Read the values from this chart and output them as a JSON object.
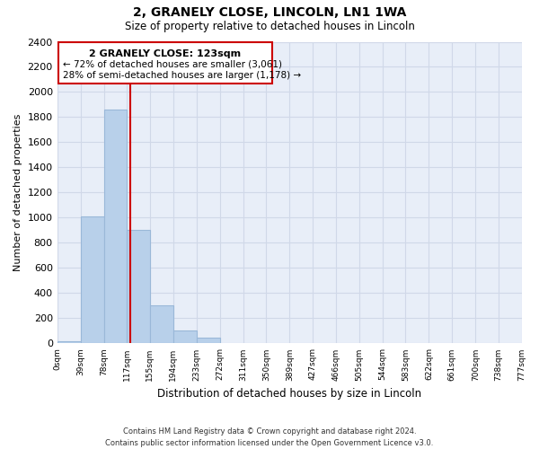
{
  "title": "2, GRANELY CLOSE, LINCOLN, LN1 1WA",
  "subtitle": "Size of property relative to detached houses in Lincoln",
  "xlabel": "Distribution of detached houses by size in Lincoln",
  "ylabel": "Number of detached properties",
  "bar_edges": [
    0,
    39,
    78,
    117,
    155,
    194,
    233,
    272,
    311,
    350,
    389,
    427,
    466,
    505,
    544,
    583,
    622,
    661,
    700,
    738,
    777
  ],
  "bar_heights": [
    20,
    1010,
    1860,
    900,
    300,
    100,
    45,
    0,
    0,
    0,
    0,
    0,
    0,
    0,
    0,
    0,
    0,
    0,
    0,
    0
  ],
  "bar_color": "#b8d0ea",
  "bar_edgecolor": "#9ab8d8",
  "ylim": [
    0,
    2400
  ],
  "yticks": [
    0,
    200,
    400,
    600,
    800,
    1000,
    1200,
    1400,
    1600,
    1800,
    2000,
    2200,
    2400
  ],
  "xtick_labels": [
    "0sqm",
    "39sqm",
    "78sqm",
    "117sqm",
    "155sqm",
    "194sqm",
    "233sqm",
    "272sqm",
    "311sqm",
    "350sqm",
    "389sqm",
    "427sqm",
    "466sqm",
    "505sqm",
    "544sqm",
    "583sqm",
    "622sqm",
    "661sqm",
    "700sqm",
    "738sqm",
    "777sqm"
  ],
  "property_line_x": 123,
  "property_line_color": "#cc0000",
  "annotation_title": "2 GRANELY CLOSE: 123sqm",
  "annotation_line1": "← 72% of detached houses are smaller (3,061)",
  "annotation_line2": "28% of semi-detached houses are larger (1,178) →",
  "grid_color": "#d0d8e8",
  "background_color": "#e8eef8",
  "footer_line1": "Contains HM Land Registry data © Crown copyright and database right 2024.",
  "footer_line2": "Contains public sector information licensed under the Open Government Licence v3.0."
}
